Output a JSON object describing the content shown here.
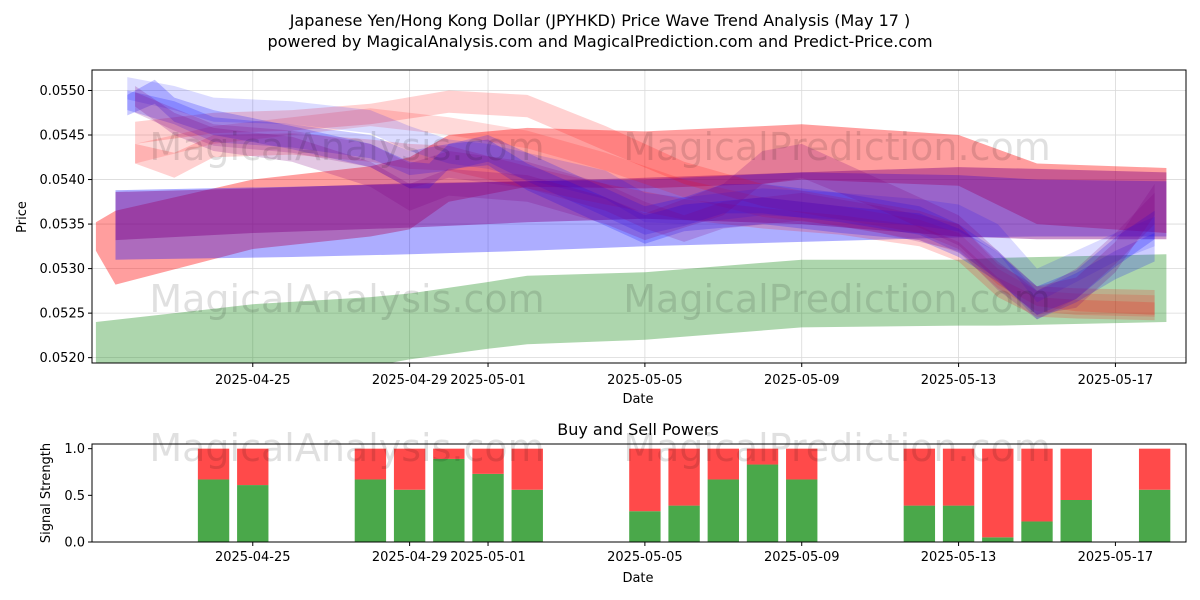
{
  "header": {
    "title": "Japanese Yen/Hong Kong Dollar (JPYHKD) Price Wave Trend Analysis (May 17 )",
    "subtitle": "powered by MagicalAnalysis.com and MagicalPrediction.com and Predict-Price.com"
  },
  "watermarks": [
    "MagicalAnalysis.com",
    "MagicalPrediction.com"
  ],
  "colors": {
    "red": "#ff0000",
    "blue": "#0000ff",
    "green": "#008000",
    "purple": "#800080",
    "buy": "#4aa84a",
    "sell": "#ff4a4a"
  },
  "chart_data": [
    {
      "type": "area",
      "title": "",
      "xlabel": "Date",
      "ylabel": "Price",
      "x_range_days": [
        -3.1,
        24.8
      ],
      "ylim": [
        0.05194,
        0.05523
      ],
      "x_ticks": [
        {
          "day": 1,
          "label": "2025-04-25"
        },
        {
          "day": 5,
          "label": "2025-04-29"
        },
        {
          "day": 7,
          "label": "2025-05-01"
        },
        {
          "day": 11,
          "label": "2025-05-05"
        },
        {
          "day": 15,
          "label": "2025-05-09"
        },
        {
          "day": 19,
          "label": "2025-05-13"
        },
        {
          "day": 23,
          "label": "2025-05-17"
        }
      ],
      "y_ticks": [
        "0.0520",
        "0.0525",
        "0.0530",
        "0.0535",
        "0.0540",
        "0.0545",
        "0.0550"
      ],
      "y_tick_values": [
        0.052,
        0.0525,
        0.053,
        0.0535,
        0.054,
        0.0545,
        0.055
      ],
      "series": [
        {
          "name": "green band",
          "color": "green",
          "opacity": 0.32,
          "x": [
            -3,
            0,
            1,
            4,
            5,
            7,
            8,
            11,
            15,
            19,
            20,
            24.3
          ],
          "upper": [
            0.0524,
            0.05255,
            0.0526,
            0.05268,
            0.05272,
            0.05285,
            0.05292,
            0.05296,
            0.0531,
            0.0531,
            0.05312,
            0.05316
          ],
          "lower": [
            0.0516,
            0.0517,
            0.05175,
            0.0519,
            0.05198,
            0.0521,
            0.05215,
            0.0522,
            0.05234,
            0.05236,
            0.05236,
            0.0524
          ]
        },
        {
          "name": "red wide band",
          "color": "red",
          "opacity": 0.38,
          "x": [
            -3,
            -2.5,
            1,
            4,
            5,
            6,
            8,
            11,
            14,
            15,
            19,
            21,
            24.3
          ],
          "upper": [
            0.05352,
            0.05365,
            0.054,
            0.05415,
            0.05425,
            0.0545,
            0.05458,
            0.05454,
            0.0546,
            0.05462,
            0.0545,
            0.05418,
            0.05413
          ],
          "lower": [
            0.0532,
            0.05282,
            0.05322,
            0.05336,
            0.05344,
            0.05375,
            0.05392,
            0.0539,
            0.05395,
            0.054,
            0.05393,
            0.0535,
            0.0534
          ]
        },
        {
          "name": "blue wide band",
          "color": "blue",
          "opacity": 0.32,
          "x": [
            -2.5,
            2,
            5,
            8,
            11,
            15,
            19,
            21,
            24.3
          ],
          "upper": [
            0.05388,
            0.05392,
            0.05395,
            0.05398,
            0.054,
            0.05408,
            0.05405,
            0.054,
            0.05398
          ],
          "lower": [
            0.0531,
            0.05313,
            0.05316,
            0.0532,
            0.05325,
            0.0533,
            0.05335,
            0.05336,
            0.05336
          ]
        },
        {
          "name": "purple wide band",
          "color": "purple",
          "opacity": 0.42,
          "x": [
            -2.5,
            1,
            5,
            8,
            11,
            15,
            19,
            21,
            24.3
          ],
          "upper": [
            0.05386,
            0.0539,
            0.05396,
            0.05398,
            0.05402,
            0.05408,
            0.05414,
            0.05412,
            0.05408
          ],
          "lower": [
            0.05332,
            0.0534,
            0.05346,
            0.05352,
            0.05356,
            0.0535,
            0.05336,
            0.05333,
            0.05333
          ]
        },
        {
          "name": "red wave 1",
          "color": "red",
          "opacity": 0.18,
          "x": [
            -2,
            0,
            2,
            4,
            6,
            8,
            10,
            12,
            14,
            16,
            18,
            19,
            20,
            21,
            22,
            24
          ],
          "upper": [
            0.05465,
            0.05475,
            0.05478,
            0.05485,
            0.055,
            0.05495,
            0.0546,
            0.0542,
            0.05395,
            0.0538,
            0.05365,
            0.0535,
            0.05305,
            0.0528,
            0.05278,
            0.05276
          ],
          "lower": [
            0.0544,
            0.05452,
            0.05455,
            0.05462,
            0.05475,
            0.0547,
            0.05432,
            0.05395,
            0.0537,
            0.05355,
            0.0534,
            0.05322,
            0.05282,
            0.05258,
            0.05252,
            0.05248
          ]
        },
        {
          "name": "red wave 2",
          "color": "red",
          "opacity": 0.15,
          "x": [
            -2,
            0,
            2,
            4,
            6,
            8,
            10,
            12,
            14,
            16,
            18,
            19,
            20,
            21,
            22,
            24
          ],
          "upper": [
            0.0544,
            0.0546,
            0.0547,
            0.0548,
            0.0547,
            0.05455,
            0.0543,
            0.054,
            0.0538,
            0.0537,
            0.05355,
            0.0534,
            0.053,
            0.05275,
            0.05272,
            0.0527
          ],
          "lower": [
            0.05418,
            0.0544,
            0.0545,
            0.0546,
            0.0545,
            0.05435,
            0.0541,
            0.0538,
            0.05358,
            0.05348,
            0.05332,
            0.05318,
            0.05278,
            0.05252,
            0.05248,
            0.05246
          ]
        },
        {
          "name": "red wave 3",
          "color": "red",
          "opacity": 0.18,
          "x": [
            -2,
            -1,
            0,
            2,
            4,
            5,
            6,
            8,
            10,
            12,
            14,
            16,
            18,
            19,
            20,
            21,
            22,
            24
          ],
          "upper": [
            0.0544,
            0.0543,
            0.0545,
            0.05452,
            0.05445,
            0.0544,
            0.05438,
            0.05415,
            0.05395,
            0.05378,
            0.05368,
            0.0536,
            0.05348,
            0.0533,
            0.0529,
            0.05268,
            0.05265,
            0.05262
          ],
          "lower": [
            0.05418,
            0.05402,
            0.05425,
            0.05428,
            0.0542,
            0.05412,
            0.0541,
            0.0539,
            0.05372,
            0.05355,
            0.05345,
            0.05338,
            0.05325,
            0.05308,
            0.05268,
            0.05246,
            0.05244,
            0.05242
          ]
        },
        {
          "name": "blue wave 1",
          "color": "blue",
          "opacity": 0.14,
          "x": [
            -2.2,
            -1,
            0,
            2,
            4,
            5,
            6,
            7,
            8,
            10,
            11,
            12,
            14,
            16,
            18,
            19,
            20,
            21,
            22,
            23,
            24
          ],
          "upper": [
            0.05515,
            0.05505,
            0.05492,
            0.05488,
            0.05478,
            0.0546,
            0.05445,
            0.0544,
            0.0543,
            0.0541,
            0.05385,
            0.0538,
            0.0539,
            0.05385,
            0.05378,
            0.05372,
            0.0535,
            0.053,
            0.0532,
            0.0534,
            0.05358
          ],
          "lower": [
            0.0549,
            0.05478,
            0.05465,
            0.05462,
            0.05452,
            0.05432,
            0.05418,
            0.05412,
            0.054,
            0.05378,
            0.05352,
            0.0535,
            0.0536,
            0.05355,
            0.05348,
            0.05342,
            0.05318,
            0.05262,
            0.05285,
            0.05308,
            0.05325
          ]
        },
        {
          "name": "blue wave 2",
          "color": "blue",
          "opacity": 0.2,
          "x": [
            -2.2,
            -1,
            0,
            2,
            4,
            5,
            6,
            7,
            8,
            10,
            11,
            12,
            13,
            14,
            16,
            18,
            19,
            20,
            21,
            22,
            23,
            24
          ],
          "upper": [
            0.055,
            0.05488,
            0.0547,
            0.05462,
            0.0545,
            0.05432,
            0.0544,
            0.0545,
            0.0543,
            0.0539,
            0.0537,
            0.0538,
            0.05395,
            0.05395,
            0.05385,
            0.0537,
            0.0535,
            0.0532,
            0.05275,
            0.05295,
            0.0532,
            0.0534
          ],
          "lower": [
            0.05478,
            0.05462,
            0.05442,
            0.05436,
            0.05424,
            0.05405,
            0.0541,
            0.0542,
            0.05398,
            0.05358,
            0.05338,
            0.05348,
            0.05362,
            0.05362,
            0.05352,
            0.05338,
            0.05318,
            0.05288,
            0.05243,
            0.05262,
            0.05288,
            0.05308
          ]
        },
        {
          "name": "blue wave 3",
          "color": "blue",
          "opacity": 0.22,
          "x": [
            -2.2,
            -1.5,
            -1,
            0,
            2,
            4,
            5,
            5.5,
            6,
            7,
            8,
            10,
            11,
            12,
            14,
            16,
            18,
            19,
            20,
            21,
            22,
            23,
            24
          ],
          "upper": [
            0.05495,
            0.05512,
            0.05492,
            0.05478,
            0.0546,
            0.0544,
            0.0542,
            0.05418,
            0.0544,
            0.05445,
            0.05418,
            0.0538,
            0.0536,
            0.05372,
            0.0538,
            0.0537,
            0.05362,
            0.05345,
            0.05318,
            0.0528,
            0.05298,
            0.05335,
            0.05365
          ],
          "lower": [
            0.05472,
            0.05485,
            0.05465,
            0.0545,
            0.05434,
            0.05414,
            0.0539,
            0.0539,
            0.05412,
            0.05416,
            0.05388,
            0.05348,
            0.05328,
            0.05342,
            0.0535,
            0.0534,
            0.05332,
            0.05313,
            0.05285,
            0.05248,
            0.05266,
            0.05302,
            0.05333
          ]
        },
        {
          "name": "purple wave 1",
          "color": "purple",
          "opacity": 0.2,
          "x": [
            -2,
            -1,
            0,
            2,
            4,
            5,
            6,
            8,
            10,
            11,
            12,
            13,
            15,
            17,
            19,
            20,
            21,
            22,
            23,
            24
          ],
          "upper": [
            0.05498,
            0.0548,
            0.05462,
            0.05455,
            0.0544,
            0.05418,
            0.05432,
            0.0542,
            0.05395,
            0.05375,
            0.0536,
            0.05375,
            0.05385,
            0.0537,
            0.0535,
            0.05308,
            0.05275,
            0.053,
            0.0534,
            0.05385
          ],
          "lower": [
            0.05475,
            0.05455,
            0.05438,
            0.0543,
            0.05414,
            0.0539,
            0.05402,
            0.0539,
            0.05365,
            0.05345,
            0.0533,
            0.05345,
            0.05354,
            0.0534,
            0.0532,
            0.05276,
            0.05243,
            0.05266,
            0.05305,
            0.0535
          ]
        },
        {
          "name": "purple wave 2",
          "color": "purple",
          "opacity": 0.22,
          "x": [
            -2,
            -1,
            0,
            2,
            4,
            5,
            6,
            8,
            10,
            11,
            12,
            13,
            14,
            15,
            17,
            19,
            20,
            21,
            22,
            23,
            24
          ],
          "upper": [
            0.05505,
            0.05475,
            0.05458,
            0.05448,
            0.0542,
            0.05395,
            0.05412,
            0.05405,
            0.0538,
            0.05362,
            0.05378,
            0.05395,
            0.05432,
            0.0544,
            0.054,
            0.0536,
            0.0532,
            0.0528,
            0.0529,
            0.0533,
            0.05395
          ],
          "lower": [
            0.05482,
            0.0545,
            0.05432,
            0.0542,
            0.05392,
            0.05365,
            0.05382,
            0.05375,
            0.0535,
            0.05332,
            0.05346,
            0.0536,
            0.05395,
            0.05402,
            0.05366,
            0.05326,
            0.05286,
            0.05248,
            0.05256,
            0.05296,
            0.0536
          ]
        }
      ]
    },
    {
      "type": "bar",
      "title": "Buy and Sell Powers",
      "xlabel": "Date",
      "ylabel": "Signal Strength",
      "ylim": [
        0,
        1.05
      ],
      "y_ticks": [
        "0.0",
        "0.5",
        "1.0"
      ],
      "y_tick_values": [
        0,
        0.5,
        1.0
      ],
      "x_ticks": [
        {
          "day": 1,
          "label": "2025-04-25"
        },
        {
          "day": 5,
          "label": "2025-04-29"
        },
        {
          "day": 7,
          "label": "2025-05-01"
        },
        {
          "day": 11,
          "label": "2025-05-05"
        },
        {
          "day": 15,
          "label": "2025-05-09"
        },
        {
          "day": 19,
          "label": "2025-05-13"
        },
        {
          "day": 23,
          "label": "2025-05-17"
        }
      ],
      "days": [
        0,
        1,
        4,
        5,
        6,
        7,
        8,
        11,
        12,
        13,
        14,
        15,
        18,
        19,
        20,
        21,
        22,
        24
      ],
      "series": [
        {
          "name": "Buy",
          "color": "buy",
          "values": [
            0.67,
            0.61,
            0.67,
            0.56,
            0.89,
            0.73,
            0.56,
            0.33,
            0.39,
            0.67,
            0.83,
            0.67,
            0.39,
            0.39,
            0.05,
            0.22,
            0.45,
            0.56
          ]
        },
        {
          "name": "Sell",
          "color": "sell",
          "values": [
            0.33,
            0.39,
            0.33,
            0.44,
            0.11,
            0.27,
            0.44,
            0.67,
            0.61,
            0.33,
            0.17,
            0.33,
            0.61,
            0.61,
            0.95,
            0.78,
            0.55,
            0.44
          ]
        }
      ]
    }
  ]
}
